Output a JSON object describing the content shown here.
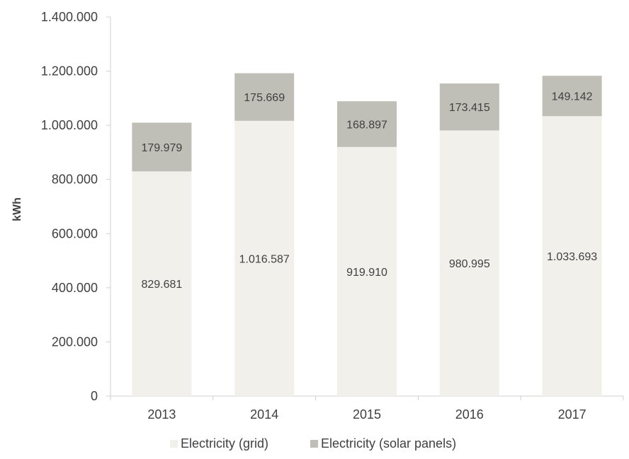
{
  "chart_data": {
    "type": "bar",
    "stacked": true,
    "title": "",
    "xlabel": "",
    "ylabel": "kWh",
    "categories": [
      "2013",
      "2014",
      "2015",
      "2016",
      "2017"
    ],
    "series": [
      {
        "name": "Electricity (grid)",
        "values": [
          829681,
          1016587,
          919910,
          980995,
          1033693
        ],
        "labels": [
          "829.681",
          "1.016.587",
          "919.910",
          "980.995",
          "1.033.693"
        ],
        "color": "#f1f0ea"
      },
      {
        "name": "Electricity (solar panels)",
        "values": [
          179979,
          175669,
          168897,
          173415,
          149142
        ],
        "labels": [
          "179.979",
          "175.669",
          "168.897",
          "173.415",
          "149.142"
        ],
        "color": "#bfbfb8"
      }
    ],
    "ylim": [
      0,
      1400000
    ],
    "yticks": [
      0,
      200000,
      400000,
      600000,
      800000,
      1000000,
      1200000,
      1400000
    ],
    "ytick_labels": [
      "0",
      "200.000",
      "400.000",
      "600.000",
      "800.000",
      "1.000.000",
      "1.200.000",
      "1.400.000"
    ],
    "grid": false,
    "legend_position": "bottom"
  }
}
